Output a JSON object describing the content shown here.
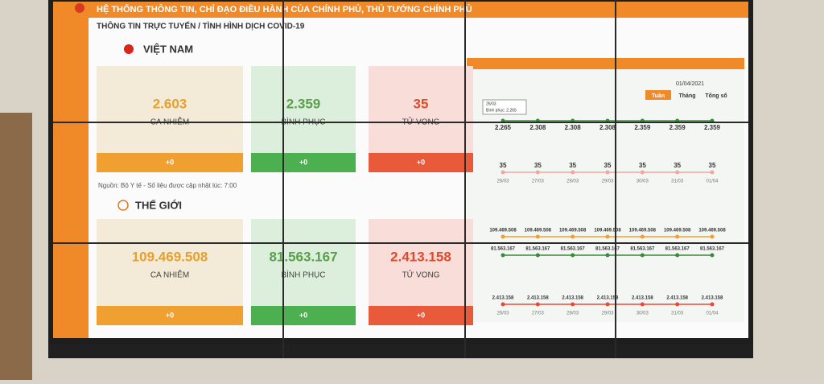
{
  "header": {
    "title": "HỆ THỐNG THÔNG TIN, CHỈ ĐẠO ĐIỀU HÀNH CỦA CHÍNH PHỦ, THỦ TƯỚNG CHÍNH PHỦ",
    "subtitle": "THÔNG TIN TRỰC TUYẾN / TÌNH HÌNH DỊCH COVID-19"
  },
  "vietnam": {
    "title": "VIỆT NAM",
    "cards": [
      {
        "value": "2.603",
        "label": "CA NHIỄM",
        "change": "+0"
      },
      {
        "value": "2.359",
        "label": "BÌNH PHỤC",
        "change": "+0"
      },
      {
        "value": "35",
        "label": "TỬ VONG",
        "change": "+0"
      }
    ],
    "source": "Nguồn: Bộ Y tế - Số liệu được cập nhật lúc: 7:00"
  },
  "world": {
    "title": "THẾ GIỚI",
    "cards": [
      {
        "value": "109.469.508",
        "label": "CA NHIỄM",
        "change": "+0"
      },
      {
        "value": "81.563.167",
        "label": "BÌNH PHỤC",
        "change": "+0"
      },
      {
        "value": "2.413.158",
        "label": "TỬ VONG",
        "change": "+0"
      }
    ]
  },
  "panel": {
    "date": "01/04/2021",
    "tabs": [
      "Tuần",
      "Tháng",
      "Tổng số"
    ],
    "tooltip": {
      "date": "26/03",
      "text": "Bình phục: 2.265"
    },
    "dates": [
      "26/03",
      "27/03",
      "28/03",
      "29/03",
      "30/03",
      "31/03",
      "01/04"
    ],
    "trends": [
      {
        "labels": [
          "2.265",
          "2.308",
          "2.308",
          "2.308",
          "2.359",
          "2.359",
          "2.359"
        ]
      },
      {
        "labels": [
          "35",
          "35",
          "35",
          "35",
          "35",
          "35",
          "35"
        ]
      },
      {
        "labels": [
          "109.469.508",
          "109.469.508",
          "109.469.508",
          "109.469.508",
          "109.469.508",
          "109.469.508",
          "109.469.508"
        ]
      },
      {
        "labels": [
          "81.563.167",
          "81.563.167",
          "81.563.167",
          "81.563.167",
          "81.563.167",
          "81.563.167",
          "81.563.167"
        ]
      },
      {
        "labels": [
          "2.413.158",
          "2.413.158",
          "2.413.158",
          "2.413.158",
          "2.413.158",
          "2.413.158",
          "2.413.158"
        ]
      }
    ]
  }
}
